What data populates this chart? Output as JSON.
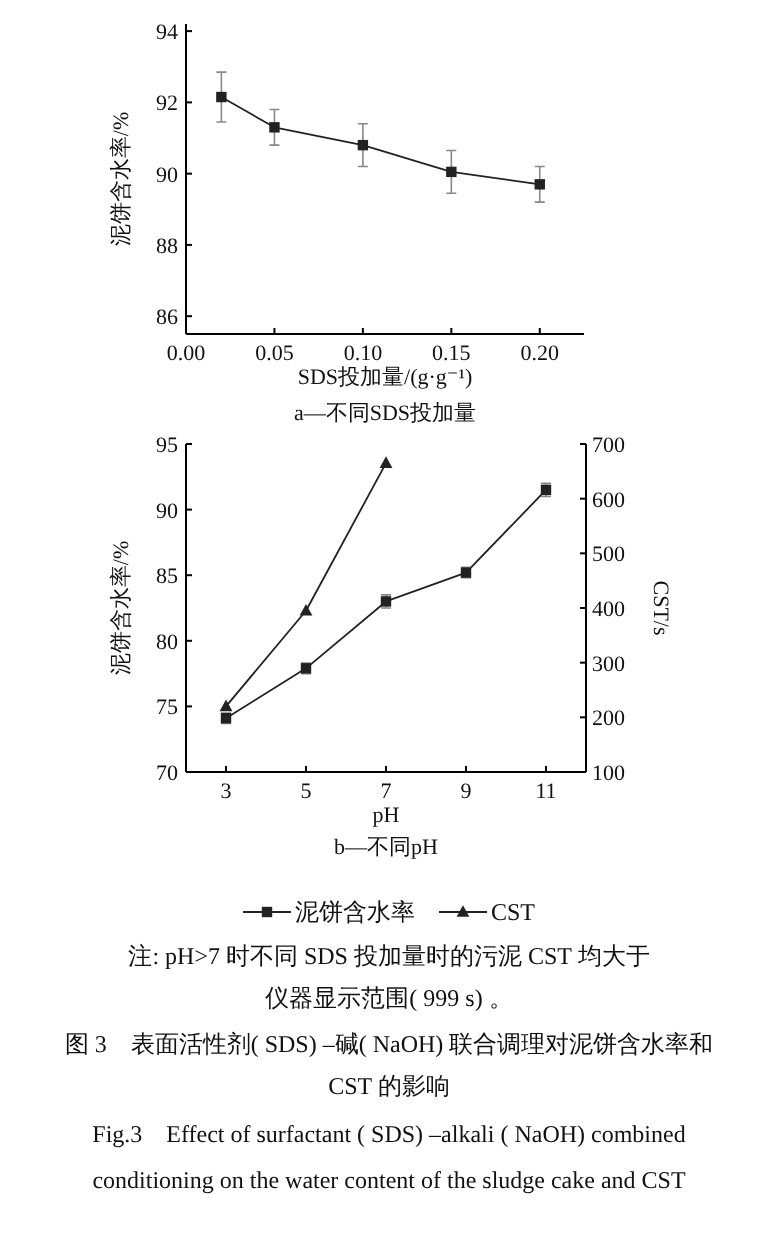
{
  "chart_data": [
    {
      "type": "line",
      "subtitle": "a—不同SDS投加量",
      "xlabel": "SDS投加量/(g·g⁻¹)",
      "ylabel": "泥饼含水率/%",
      "x": [
        0.02,
        0.05,
        0.1,
        0.15,
        0.2
      ],
      "series": [
        {
          "color": "#222222",
          "marker": "square",
          "values": [
            92.15,
            91.3,
            90.8,
            90.05,
            89.7
          ],
          "errors": [
            0.7,
            0.5,
            0.6,
            0.6,
            0.5
          ]
        }
      ],
      "xlim": [
        0,
        0.225
      ],
      "xticks": [
        {
          "value": 0,
          "label": "0.00"
        },
        {
          "value": 0.05,
          "label": "0.05"
        },
        {
          "value": 0.1,
          "label": "0.10"
        },
        {
          "value": 0.15,
          "label": "0.15"
        },
        {
          "value": 0.2,
          "label": "0.20"
        }
      ],
      "ylim": [
        85.5,
        94.2
      ],
      "yticks": [
        86,
        88,
        90,
        92,
        94
      ]
    },
    {
      "type": "line",
      "subtitle": "b—不同pH",
      "xlabel": "pH",
      "ylabel": "泥饼含水率/%",
      "y2label": "CST/s",
      "series": [
        {
          "name": "泥饼含水率",
          "color": "#222222",
          "marker": "square",
          "x": [
            3,
            5,
            7,
            9,
            11
          ],
          "values": [
            74.1,
            77.9,
            83.0,
            85.2,
            91.5
          ],
          "errors": [
            0.4,
            0.4,
            0.5,
            0.4,
            0.5
          ]
        },
        {
          "name": "CST",
          "color": "#222222",
          "marker": "triangle",
          "axis": "y2",
          "x": [
            3,
            5,
            7
          ],
          "values": [
            220,
            395,
            665
          ]
        }
      ],
      "xlim": [
        2,
        12
      ],
      "xticks": [
        3,
        5,
        7,
        9,
        11
      ],
      "ylim": [
        70,
        95
      ],
      "yticks": [
        70,
        75,
        80,
        85,
        90,
        95
      ],
      "y2lim": [
        100,
        700
      ],
      "y2ticks": [
        100,
        200,
        300,
        400,
        500,
        600,
        700
      ],
      "legend": "bottom",
      "annotations": [
        "注: pH>7 时不同 SDS 投加量时的污泥 CST 均大于",
        "仪器显示范围( 999 s) 。",
        "图 3　表面活性剂( SDS) –碱( NaOH) 联合调理对泥饼含水率和",
        "CST 的影响",
        "Fig.3　Effect of surfactant ( SDS) –alkali ( NaOH)  combined",
        "conditioning on the water content of the sludge cake and CST"
      ]
    }
  ]
}
